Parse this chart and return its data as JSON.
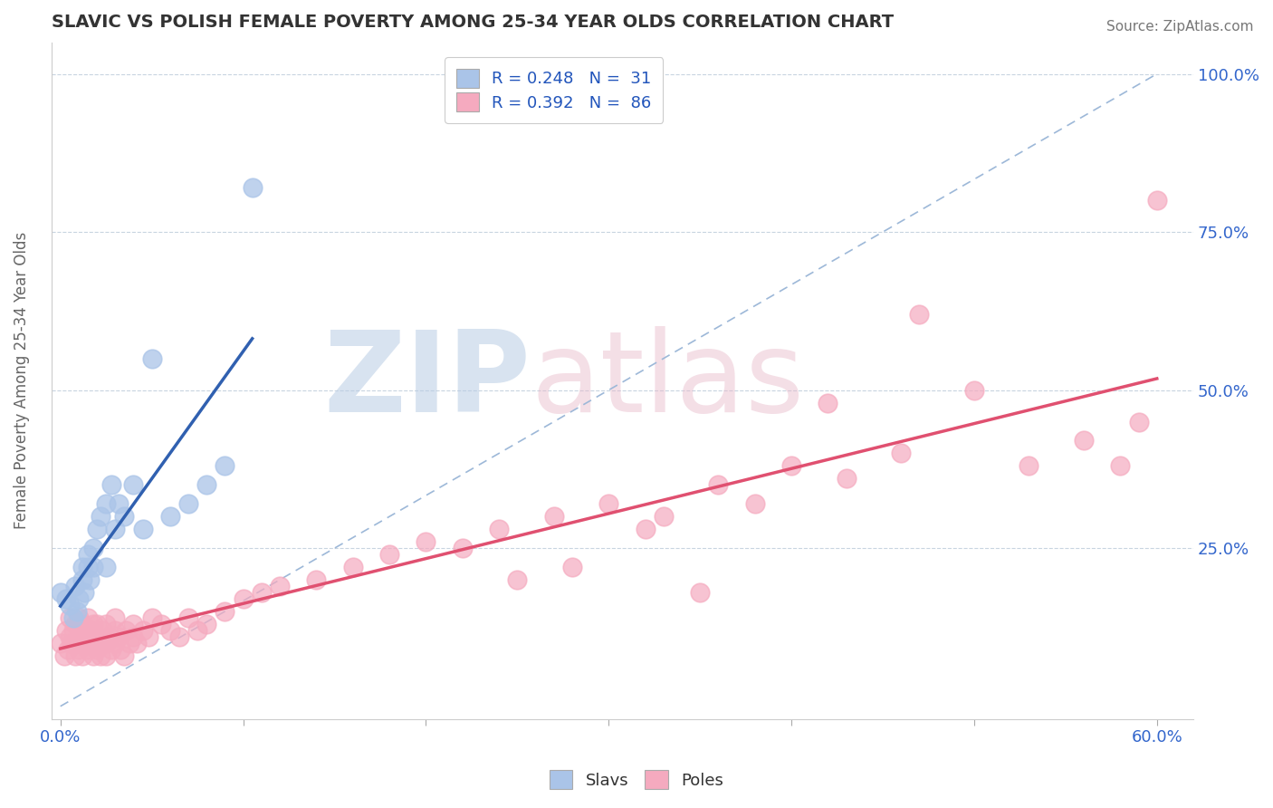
{
  "title": "SLAVIC VS POLISH FEMALE POVERTY AMONG 25-34 YEAR OLDS CORRELATION CHART",
  "source": "Source: ZipAtlas.com",
  "ylabel": "Female Poverty Among 25-34 Year Olds",
  "xlim": [
    -0.005,
    0.62
  ],
  "ylim": [
    -0.02,
    1.05
  ],
  "xticks": [
    0.0,
    0.6
  ],
  "xticklabels": [
    "0.0%",
    "60.0%"
  ],
  "ytick_positions": [
    0.25,
    0.5,
    0.75,
    1.0
  ],
  "ytick_labels": [
    "25.0%",
    "50.0%",
    "75.0%",
    "100.0%"
  ],
  "slavs_R": 0.248,
  "slavs_N": 31,
  "poles_R": 0.392,
  "poles_N": 86,
  "slavs_color": "#aac4e8",
  "poles_color": "#f5aabf",
  "slavs_edge_color": "#aac4e8",
  "poles_edge_color": "#f5aabf",
  "slavs_line_color": "#3060b0",
  "poles_line_color": "#e05070",
  "ref_line_color": "#9db8d8",
  "legend_text_color": "#2255bb",
  "title_color": "#333333",
  "watermark_zip": "ZIP",
  "watermark_atlas": "atlas",
  "background_color": "#ffffff",
  "slavs_x": [
    0.0,
    0.003,
    0.005,
    0.007,
    0.008,
    0.009,
    0.01,
    0.012,
    0.012,
    0.013,
    0.015,
    0.015,
    0.016,
    0.018,
    0.018,
    0.02,
    0.022,
    0.025,
    0.025,
    0.028,
    0.03,
    0.032,
    0.035,
    0.04,
    0.045,
    0.05,
    0.06,
    0.07,
    0.08,
    0.09,
    0.105
  ],
  "slavs_y": [
    0.18,
    0.17,
    0.16,
    0.14,
    0.19,
    0.15,
    0.17,
    0.2,
    0.22,
    0.18,
    0.22,
    0.24,
    0.2,
    0.25,
    0.22,
    0.28,
    0.3,
    0.32,
    0.22,
    0.35,
    0.28,
    0.32,
    0.3,
    0.35,
    0.28,
    0.55,
    0.3,
    0.32,
    0.35,
    0.38,
    0.82
  ],
  "poles_x": [
    0.0,
    0.002,
    0.003,
    0.004,
    0.005,
    0.005,
    0.006,
    0.007,
    0.008,
    0.008,
    0.009,
    0.01,
    0.01,
    0.011,
    0.012,
    0.012,
    0.013,
    0.014,
    0.015,
    0.015,
    0.015,
    0.016,
    0.017,
    0.018,
    0.018,
    0.019,
    0.02,
    0.02,
    0.021,
    0.022,
    0.023,
    0.025,
    0.025,
    0.025,
    0.027,
    0.028,
    0.03,
    0.03,
    0.03,
    0.032,
    0.033,
    0.035,
    0.036,
    0.038,
    0.04,
    0.04,
    0.042,
    0.045,
    0.048,
    0.05,
    0.055,
    0.06,
    0.065,
    0.07,
    0.075,
    0.08,
    0.09,
    0.1,
    0.11,
    0.12,
    0.14,
    0.16,
    0.18,
    0.2,
    0.22,
    0.24,
    0.27,
    0.3,
    0.33,
    0.36,
    0.38,
    0.4,
    0.43,
    0.46,
    0.5,
    0.53,
    0.56,
    0.58,
    0.59,
    0.6,
    0.25,
    0.28,
    0.32,
    0.35,
    0.42,
    0.47
  ],
  "poles_y": [
    0.1,
    0.08,
    0.12,
    0.09,
    0.11,
    0.14,
    0.1,
    0.12,
    0.08,
    0.13,
    0.1,
    0.09,
    0.14,
    0.11,
    0.08,
    0.13,
    0.1,
    0.12,
    0.09,
    0.11,
    0.14,
    0.1,
    0.12,
    0.08,
    0.13,
    0.1,
    0.09,
    0.13,
    0.11,
    0.08,
    0.12,
    0.1,
    0.13,
    0.08,
    0.11,
    0.09,
    0.1,
    0.12,
    0.14,
    0.11,
    0.09,
    0.08,
    0.12,
    0.1,
    0.11,
    0.13,
    0.1,
    0.12,
    0.11,
    0.14,
    0.13,
    0.12,
    0.11,
    0.14,
    0.12,
    0.13,
    0.15,
    0.17,
    0.18,
    0.19,
    0.2,
    0.22,
    0.24,
    0.26,
    0.25,
    0.28,
    0.3,
    0.32,
    0.3,
    0.35,
    0.32,
    0.38,
    0.36,
    0.4,
    0.5,
    0.38,
    0.42,
    0.38,
    0.45,
    0.8,
    0.2,
    0.22,
    0.28,
    0.18,
    0.48,
    0.62
  ]
}
